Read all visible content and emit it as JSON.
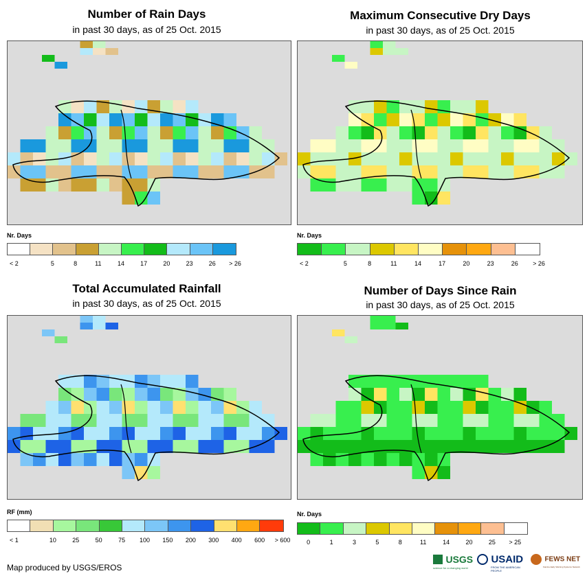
{
  "panels": [
    {
      "id": "rain-days",
      "title": "Number of Rain Days",
      "subtitle": "in past 30 days, as of 25 Oct. 2015",
      "legend_title": "Nr. Days",
      "legend_colors": [
        "#ffffff",
        "#f5e2c4",
        "#e2c28c",
        "#c9a033",
        "#c7f5c4",
        "#38ef4e",
        "#13bc1a",
        "#b4e9fb",
        "#6bc4f7",
        "#1a99dd"
      ],
      "legend_labels": [
        "< 2",
        "5",
        "8",
        "11",
        "14",
        "17",
        "20",
        "23",
        "26",
        "> 26"
      ],
      "legend_align": "edge"
    },
    {
      "id": "dry-days",
      "title": "Maximum Consecutive Dry Days",
      "subtitle": "in past 30 days, as of 25 Oct. 2015",
      "legend_title": "Nr. Days",
      "legend_colors": [
        "#13bc1a",
        "#38ef4e",
        "#c7f5c4",
        "#dcc800",
        "#ffe561",
        "#fffdc4",
        "#e6920a",
        "#ffa812",
        "#fdbf92",
        "#ffffff"
      ],
      "legend_labels": [
        "< 2",
        "5",
        "8",
        "11",
        "14",
        "17",
        "20",
        "23",
        "26",
        "> 26"
      ],
      "legend_align": "edge"
    },
    {
      "id": "rainfall",
      "title": "Total Accumulated Rainfall",
      "subtitle": "in past 30 days, as of 25 Oct. 2015",
      "legend_title": "RF (mm)",
      "legend_colors": [
        "#ffffff",
        "#f1dfb4",
        "#a7f79e",
        "#79e67b",
        "#38c838",
        "#b4e9fb",
        "#7cc6f7",
        "#3d95ee",
        "#1e63e6",
        "#ffe070",
        "#ffa812",
        "#ff3b0a"
      ],
      "legend_labels": [
        "< 1",
        "10",
        "25",
        "50",
        "75",
        "100",
        "150",
        "200",
        "300",
        "400",
        "600",
        "> 600"
      ],
      "legend_align": "edge"
    },
    {
      "id": "since-rain",
      "title": "Number of Days Since Rain",
      "subtitle": "in past 30 days, as of 25 Oct. 2015",
      "legend_title": "Nr. Days",
      "legend_colors": [
        "#13bc1a",
        "#38ef4e",
        "#c7f5c4",
        "#dcc800",
        "#ffe561",
        "#fffdc4",
        "#e6920a",
        "#ffa812",
        "#fdbf92",
        "#ffffff"
      ],
      "legend_labels": [
        "0",
        "1",
        "3",
        "5",
        "8",
        "11",
        "14",
        "20",
        "25",
        "> 25"
      ],
      "legend_align": "center"
    }
  ],
  "credit": "Map produced by USGS/EROS",
  "logos": {
    "usgs": "USGS",
    "usgs_tagline": "science for a changing world",
    "usaid": "USAID",
    "usaid_tagline": "FROM THE AMERICAN PEOPLE",
    "fews": "FEWS NET",
    "fews_tagline": "Famine Early Warning Systems Network"
  },
  "colors": {
    "map_background": "#dcdcdc",
    "outline": "#000000"
  }
}
